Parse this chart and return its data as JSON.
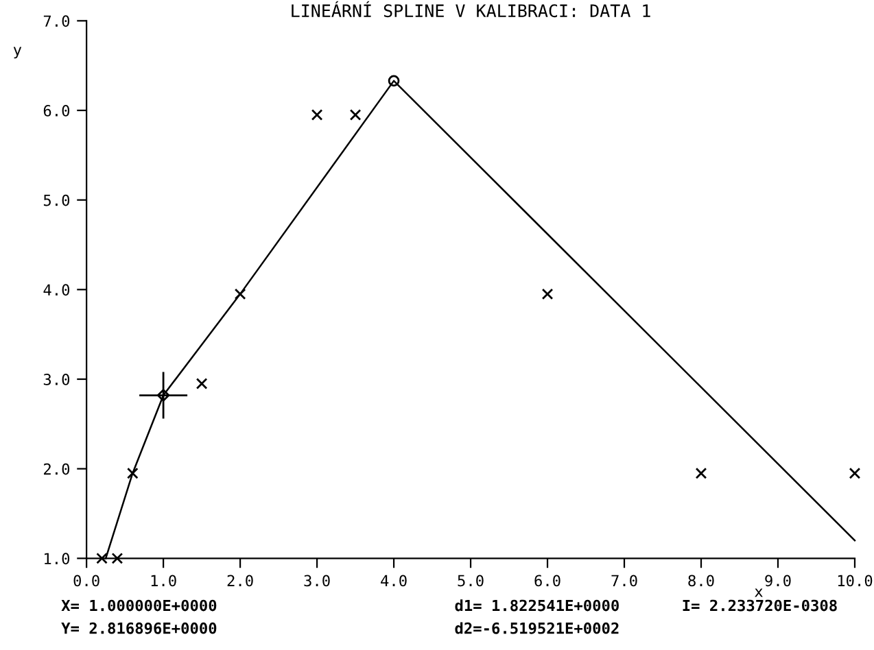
{
  "chart_data": {
    "type": "scatter",
    "title": "LINEÁRNÍ SPLINE V KALIBRACI: DATA 1",
    "xlabel": "x",
    "ylabel": "y",
    "xlim": [
      0,
      10
    ],
    "ylim": [
      1,
      7
    ],
    "xticks": [
      {
        "value": 0,
        "label": "0.0"
      },
      {
        "value": 1,
        "label": "1.0"
      },
      {
        "value": 2,
        "label": "2.0"
      },
      {
        "value": 3,
        "label": "3.0"
      },
      {
        "value": 4,
        "label": "4.0"
      },
      {
        "value": 5,
        "label": "5.0"
      },
      {
        "value": 6,
        "label": "6.0"
      },
      {
        "value": 7,
        "label": "7.0"
      },
      {
        "value": 8,
        "label": "8.0"
      },
      {
        "value": 9,
        "label": "9.0"
      },
      {
        "value": 10,
        "label": "10.0"
      }
    ],
    "yticks": [
      {
        "value": 1,
        "label": "1.0"
      },
      {
        "value": 2,
        "label": "2.0"
      },
      {
        "value": 3,
        "label": "3.0"
      },
      {
        "value": 4,
        "label": "4.0"
      },
      {
        "value": 5,
        "label": "5.0"
      },
      {
        "value": 6,
        "label": "6.0"
      },
      {
        "value": 7,
        "label": "7.0"
      }
    ],
    "grid": false,
    "series": [
      {
        "type": "line",
        "color": "#000000",
        "marker": "none",
        "line_style": "solid",
        "x": [
          0.25,
          0.6,
          1.0,
          2.0,
          4.0,
          10.0
        ],
        "values": [
          1.0,
          1.95,
          2.82,
          3.95,
          6.33,
          1.2
        ]
      },
      {
        "color": "#000000",
        "marker": "cross",
        "x": [
          0.2,
          0.4,
          0.6,
          1.5,
          2.0,
          3.0,
          3.5,
          6.0,
          8.0,
          10.0
        ],
        "values": [
          1.0,
          1.0,
          1.95,
          2.95,
          3.95,
          5.95,
          5.95,
          3.95,
          1.95,
          1.95
        ]
      },
      {
        "color": "#000000",
        "marker": "circle",
        "x": [
          4.0
        ],
        "values": [
          6.33
        ]
      },
      {
        "color": "#000000",
        "marker": "diamond",
        "x": [
          1.0
        ],
        "values": [
          2.82
        ]
      }
    ],
    "annotations": [
      "X= 1.000000E+0000",
      "Y= 2.816896E+0000",
      "d1= 1.822541E+0000",
      "d2=-6.519521E+0002",
      "I= 2.233720E-0308"
    ]
  }
}
